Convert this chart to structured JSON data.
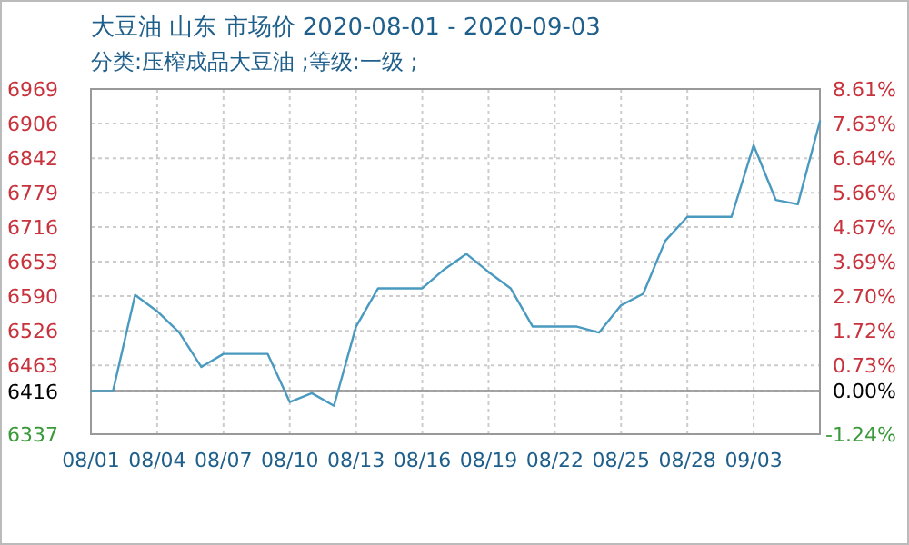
{
  "chart_data": {
    "type": "line",
    "title": "大豆油 山东 市场价 2020-08-01 - 2020-09-03",
    "subtitle": "分类:压榨成品大豆油 ;等级:一级 ;",
    "categories": [
      "08/01",
      null,
      null,
      "08/04",
      null,
      null,
      "08/07",
      null,
      null,
      "08/10",
      null,
      null,
      "08/13",
      null,
      null,
      "08/16",
      null,
      null,
      "08/19",
      null,
      null,
      "08/22",
      null,
      null,
      "08/25",
      null,
      null,
      "08/28",
      null,
      null,
      "09/03",
      null,
      null,
      null
    ],
    "series": [
      {
        "color": "#4a9ac0",
        "values": [
          6416,
          6416,
          6592,
          6562,
          6523,
          6460,
          6484,
          6484,
          6484,
          6396,
          6412,
          6389,
          6534,
          6604,
          6604,
          6604,
          6639,
          6667,
          6634,
          6604,
          6534,
          6534,
          6534,
          6523,
          6573,
          6594,
          6691,
          6735,
          6735,
          6735,
          6866,
          6766,
          6758,
          6910
        ]
      }
    ],
    "ylim": [
      6337,
      6969
    ],
    "yticks": [
      6337,
      6416,
      6463,
      6526,
      6590,
      6653,
      6716,
      6779,
      6842,
      6906,
      6969
    ],
    "y2lim": [
      -1.24,
      8.61
    ],
    "y2ticks": [
      {
        "value": -1.24,
        "label": "-1.24%"
      },
      {
        "value": 0,
        "label": "0.00%"
      },
      {
        "value": 0.73,
        "label": "0.73%"
      },
      {
        "value": 1.72,
        "label": "1.72%"
      },
      {
        "value": 2.7,
        "label": "2.70%"
      },
      {
        "value": 3.69,
        "label": "3.69%"
      },
      {
        "value": 4.67,
        "label": "4.67%"
      },
      {
        "value": 5.66,
        "label": "5.66%"
      },
      {
        "value": 6.64,
        "label": "6.64%"
      },
      {
        "value": 7.63,
        "label": "7.63%"
      },
      {
        "value": 8.61,
        "label": "8.61%"
      }
    ],
    "grid": true,
    "ref_lines": [
      {
        "axis": "y",
        "value": 6416,
        "color": "#888888"
      }
    ]
  }
}
